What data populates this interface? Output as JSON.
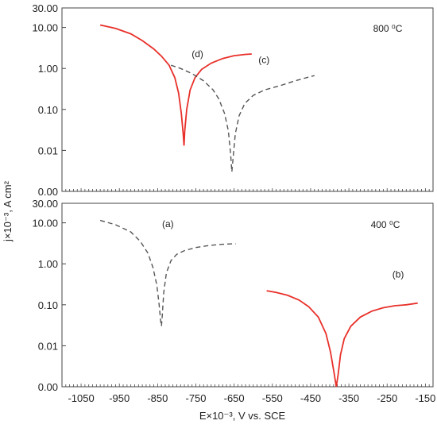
{
  "chart_data": {
    "type": "line",
    "xlabel": "E×10⁻³, V vs. SCE",
    "ylabel": "j×10⁻³, A cm²",
    "xlim": [
      -1100,
      -130
    ],
    "x_ticks": [
      "-1050",
      "-950",
      "-850",
      "-750",
      "-650",
      "-550",
      "-450",
      "-350",
      "-250",
      "-150"
    ],
    "x_tick_values": [
      -1050,
      -950,
      -850,
      -750,
      -650,
      -550,
      -450,
      -350,
      -250,
      -150
    ],
    "y_scale": "log",
    "y_ticks": [
      "30.00",
      "10.00",
      "1.00",
      "0.10",
      "0.01",
      "0.00"
    ],
    "y_tick_values": [
      30,
      10,
      1,
      0.1,
      0.01,
      0.001
    ],
    "grid": false,
    "panels": [
      {
        "temperature": "800 ⁰C",
        "series": [
          {
            "name": "(d)",
            "color": "#e8302a",
            "style": "solid",
            "points": [
              [
                -1000,
                11.5
              ],
              [
                -960,
                9.5
              ],
              [
                -920,
                7.0
              ],
              [
                -890,
                4.8
              ],
              [
                -860,
                3.0
              ],
              [
                -840,
                2.0
              ],
              [
                -820,
                1.2
              ],
              [
                -805,
                0.6
              ],
              [
                -795,
                0.25
              ],
              [
                -788,
                0.08
              ],
              [
                -783,
                0.025
              ],
              [
                -781,
                0.013
              ],
              [
                -779,
                0.03
              ],
              [
                -774,
                0.1
              ],
              [
                -765,
                0.3
              ],
              [
                -752,
                0.6
              ],
              [
                -735,
                0.95
              ],
              [
                -710,
                1.35
              ],
              [
                -680,
                1.75
              ],
              [
                -650,
                2.05
              ],
              [
                -620,
                2.2
              ],
              [
                -604,
                2.25
              ]
            ]
          },
          {
            "name": "(c)",
            "color": "#555555",
            "style": "dashed",
            "points": [
              [
                -815,
                1.2
              ],
              [
                -790,
                1.0
              ],
              [
                -760,
                0.75
              ],
              [
                -730,
                0.5
              ],
              [
                -705,
                0.3
              ],
              [
                -690,
                0.18
              ],
              [
                -675,
                0.08
              ],
              [
                -665,
                0.03
              ],
              [
                -659,
                0.008
              ],
              [
                -656,
                0.003
              ],
              [
                -653,
                0.006
              ],
              [
                -647,
                0.025
              ],
              [
                -637,
                0.07
              ],
              [
                -622,
                0.14
              ],
              [
                -600,
                0.22
              ],
              [
                -570,
                0.3
              ],
              [
                -530,
                0.38
              ],
              [
                -490,
                0.5
              ],
              [
                -460,
                0.6
              ],
              [
                -440,
                0.67
              ]
            ]
          }
        ]
      },
      {
        "temperature": "400 ⁰C",
        "series": [
          {
            "name": "(a)",
            "color": "#555555",
            "style": "dashed",
            "points": [
              [
                -1000,
                11.5
              ],
              [
                -960,
                9.0
              ],
              [
                -920,
                6.0
              ],
              [
                -895,
                3.5
              ],
              [
                -875,
                1.8
              ],
              [
                -862,
                0.8
              ],
              [
                -852,
                0.3
              ],
              [
                -846,
                0.1
              ],
              [
                -842,
                0.04
              ],
              [
                -840,
                0.03
              ],
              [
                -838,
                0.05
              ],
              [
                -834,
                0.2
              ],
              [
                -827,
                0.6
              ],
              [
                -815,
                1.2
              ],
              [
                -800,
                1.7
              ],
              [
                -780,
                2.1
              ],
              [
                -750,
                2.5
              ],
              [
                -715,
                2.8
              ],
              [
                -680,
                3.0
              ],
              [
                -646,
                3.1
              ]
            ]
          },
          {
            "name": "(b)",
            "color": "#e8302a",
            "style": "solid",
            "points": [
              [
                -565,
                0.22
              ],
              [
                -540,
                0.2
              ],
              [
                -510,
                0.17
              ],
              [
                -480,
                0.13
              ],
              [
                -455,
                0.09
              ],
              [
                -430,
                0.05
              ],
              [
                -410,
                0.02
              ],
              [
                -398,
                0.007
              ],
              [
                -388,
                0.002
              ],
              [
                -383,
                0.001
              ],
              [
                -378,
                0.002
              ],
              [
                -372,
                0.006
              ],
              [
                -362,
                0.015
              ],
              [
                -345,
                0.03
              ],
              [
                -320,
                0.05
              ],
              [
                -290,
                0.07
              ],
              [
                -260,
                0.085
              ],
              [
                -230,
                0.095
              ],
              [
                -200,
                0.1
              ],
              [
                -170,
                0.11
              ]
            ]
          }
        ]
      }
    ]
  },
  "colors": {
    "background": "#ffffff",
    "axis": "#444444",
    "solid_series": "#e8302a",
    "dashed_series": "#555555"
  }
}
